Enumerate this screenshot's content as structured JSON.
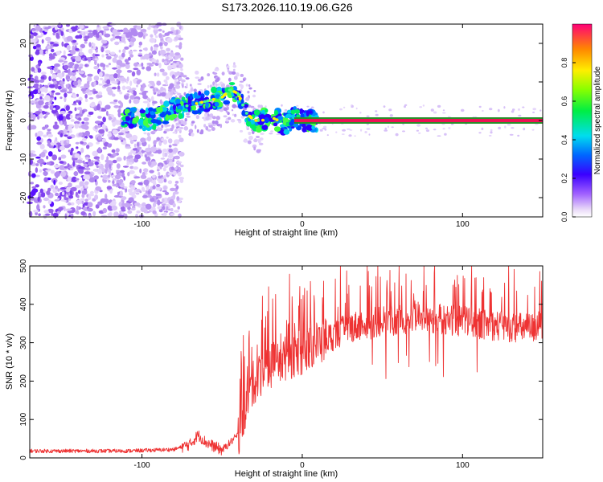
{
  "figure": {
    "title": "S173.2026.110.19.06.G26"
  },
  "chart_data": [
    {
      "type": "heatmap",
      "title": "S173.2026.110.19.06.G26",
      "xlabel": "Height of straight line (km)",
      "ylabel": "Frequency (Hz)",
      "xlim": [
        -170,
        150
      ],
      "ylim": [
        -25,
        25
      ],
      "xticks": [
        -100,
        0,
        100
      ],
      "yticks": [
        -20,
        -10,
        0,
        10,
        20
      ],
      "colorbar": {
        "label": "Normalized spectral amplitude",
        "range": [
          0,
          1
        ],
        "ticks": [
          "0.0",
          "0.2",
          "0.4",
          "0.6",
          "0.8"
        ]
      },
      "ridge": {
        "x": [
          -110,
          -100,
          -90,
          -80,
          -70,
          -60,
          -50,
          -45,
          -40,
          -35,
          -30,
          -25,
          -20,
          -15,
          -10,
          -5,
          0,
          10,
          150
        ],
        "y": [
          1,
          0,
          1,
          3,
          4,
          5,
          6,
          8,
          7,
          2,
          0,
          0,
          1,
          0,
          -1,
          1,
          0,
          0,
          0
        ]
      },
      "constant_line": {
        "x_start": -5,
        "x_end": 150,
        "frequency": 0
      }
    },
    {
      "type": "line",
      "xlabel": "Height of straight line (km)",
      "ylabel": "SNR (10 * v/v)",
      "xlim": [
        -170,
        150
      ],
      "ylim": [
        0,
        500
      ],
      "xticks": [
        -100,
        0,
        100
      ],
      "yticks": [
        0,
        100,
        200,
        300,
        400,
        500
      ],
      "series": [
        {
          "name": "SNR",
          "color": "#ee3333",
          "x": [
            -170,
            -140,
            -110,
            -80,
            -70,
            -65,
            -60,
            -50,
            -40,
            -35,
            -30,
            -20,
            -10,
            0,
            10,
            20,
            30,
            40,
            50,
            60,
            70,
            80,
            90,
            100,
            110,
            120,
            130,
            140,
            150
          ],
          "y": [
            18,
            18,
            18,
            22,
            35,
            60,
            40,
            20,
            60,
            140,
            200,
            240,
            260,
            275,
            300,
            320,
            340,
            350,
            355,
            360,
            362,
            362,
            360,
            355,
            350,
            345,
            340,
            338,
            340
          ]
        }
      ]
    }
  ]
}
